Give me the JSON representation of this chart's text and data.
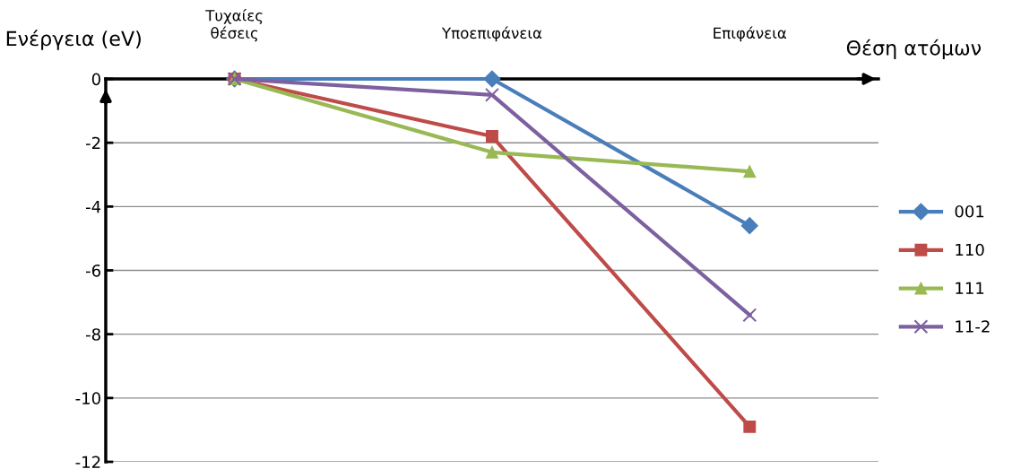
{
  "chart_data": {
    "type": "line",
    "xlabel": "Θέση ατόμων",
    "ylabel": "Ενέργεια (eV)",
    "categories": [
      "Τυχαίες\nθέσεις",
      "Υποεπιφάνεια",
      "Επιφάνεια"
    ],
    "series": [
      {
        "name": "001",
        "color": "#4a7ebb",
        "marker": "diamond",
        "values": [
          0,
          0,
          -4.6
        ]
      },
      {
        "name": "110",
        "color": "#be4b48",
        "marker": "square",
        "values": [
          0,
          -1.8,
          -10.9
        ]
      },
      {
        "name": "111",
        "color": "#98b954",
        "marker": "triangle",
        "values": [
          0,
          -2.3,
          -2.9
        ]
      },
      {
        "name": "11-2",
        "color": "#7d60a0",
        "marker": "cross",
        "values": [
          0,
          -0.5,
          -7.4
        ]
      }
    ],
    "ylim": [
      -12,
      0
    ],
    "yticks": [
      0,
      -2,
      -4,
      -6,
      -8,
      -10,
      -12
    ],
    "grid": "y",
    "legend": "right"
  }
}
